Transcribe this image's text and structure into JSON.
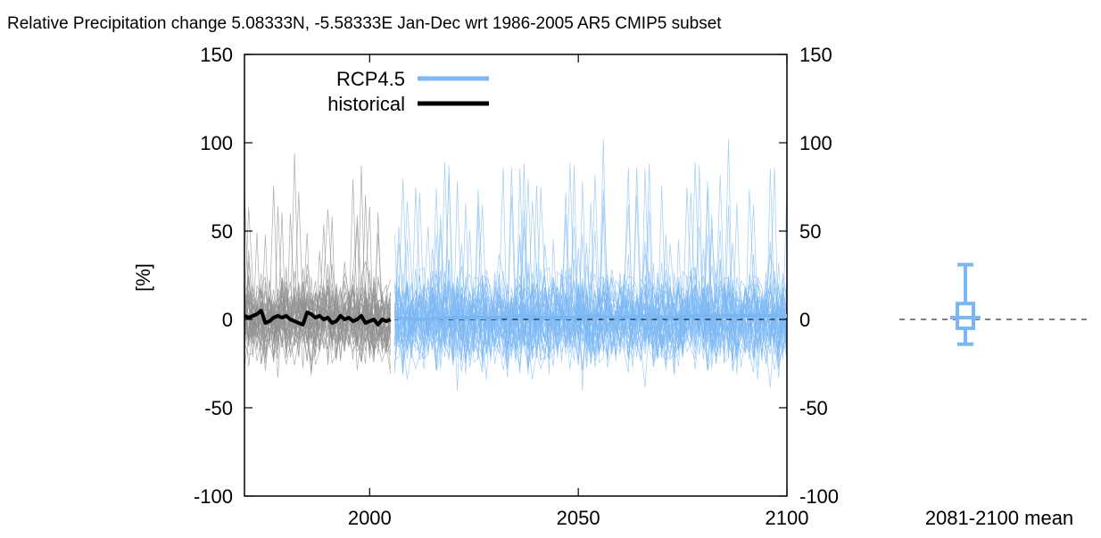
{
  "chart_data": {
    "type": "line",
    "title": "Relative Precipitation change 5.08333N, -5.58333E Jan-Dec wrt 1986-2005 AR5 CMIP5 subset",
    "ylabel": "[%]",
    "xlim": [
      1970,
      2100
    ],
    "ylim": [
      -100,
      150
    ],
    "xticks": [
      2000,
      2050,
      2100
    ],
    "yticks": [
      -100,
      -50,
      0,
      50,
      100,
      150
    ],
    "grid": false,
    "legend_position": "top-left",
    "series": [
      {
        "name": "RCP4.5",
        "color": "#7ab8f5",
        "x": [
          2006,
          2012,
          2018,
          2024,
          2030,
          2036,
          2042,
          2048,
          2054,
          2060,
          2066,
          2072,
          2078,
          2084,
          2090,
          2096,
          2100
        ],
        "values": [
          1,
          0,
          1,
          1,
          1,
          2,
          1,
          1,
          2,
          1,
          2,
          1,
          2,
          2,
          2,
          2,
          2
        ]
      },
      {
        "name": "historical",
        "color": "#000000",
        "x": [
          1970,
          1971,
          1972,
          1973,
          1974,
          1975,
          1976,
          1977,
          1978,
          1979,
          1980,
          1981,
          1982,
          1983,
          1984,
          1985,
          1986,
          1987,
          1988,
          1989,
          1990,
          1991,
          1992,
          1993,
          1994,
          1995,
          1996,
          1997,
          1998,
          1999,
          2000,
          2001,
          2002,
          2003,
          2004,
          2005
        ],
        "values": [
          2,
          1,
          2,
          3,
          5,
          -2,
          -1,
          1,
          2,
          1,
          2,
          0,
          -1,
          -2,
          -3,
          4,
          3,
          1,
          2,
          0,
          1,
          -2,
          -1,
          2,
          0,
          1,
          -1,
          0,
          2,
          -2,
          -1,
          0,
          -3,
          0,
          -1,
          0
        ]
      }
    ],
    "ensemble_members": {
      "historical_count": 40,
      "rcp45_count": 40,
      "historical_color": "#909090",
      "rcp45_color": "#7ab8f5"
    },
    "summary": {
      "label": "2081-2100 mean",
      "color": "#7ab8f5",
      "median": 1,
      "box_low": -5,
      "box_high": 9,
      "whisker_low": -14,
      "whisker_high": 31,
      "reference_value": 0
    }
  }
}
